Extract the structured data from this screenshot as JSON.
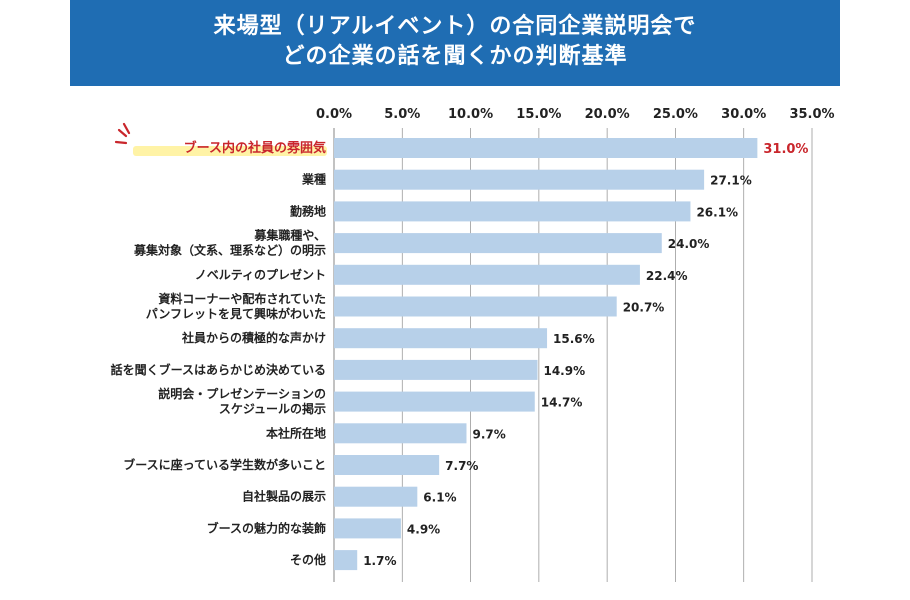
{
  "title": {
    "line1": "来場型（リアルイベント）の合同企業説明会で",
    "line2": "どの企業の話を聞くかの判断基準"
  },
  "colors": {
    "banner": "#1f6db3",
    "bar": "#b7d0e9",
    "highlight_text": "#c9262c",
    "highlight_marker": "#fff3a6"
  },
  "chart_data": {
    "type": "bar",
    "orientation": "horizontal",
    "xlim": [
      0,
      35
    ],
    "x_ticks": [
      "0.0%",
      "5.0%",
      "10.0%",
      "15.0%",
      "20.0%",
      "25.0%",
      "30.0%",
      "35.0%"
    ],
    "grid": true,
    "categories": [
      [
        "ブース内の社員の雰囲気"
      ],
      [
        "業種"
      ],
      [
        "勤務地"
      ],
      [
        "募集職種や、",
        "募集対象（文系、理系など）の明示"
      ],
      [
        "ノベルティのプレゼント"
      ],
      [
        "資料コーナーや配布されていた",
        "パンフレットを見て興味がわいた"
      ],
      [
        "社員からの積極的な声かけ"
      ],
      [
        "話を聞くブースはあらかじめ決めている"
      ],
      [
        "説明会・プレゼンテーションの",
        "スケジュールの掲示"
      ],
      [
        "本社所在地"
      ],
      [
        "ブースに座っている学生数が多いこと"
      ],
      [
        "自社製品の展示"
      ],
      [
        "ブースの魅力的な装飾"
      ],
      [
        "その他"
      ]
    ],
    "values": [
      31.0,
      27.1,
      26.1,
      24.0,
      22.4,
      20.7,
      15.6,
      14.9,
      14.7,
      9.7,
      7.7,
      6.1,
      4.9,
      1.7
    ],
    "value_labels": [
      "31.0%",
      "27.1%",
      "26.1%",
      "24.0%",
      "22.4%",
      "20.7%",
      "15.6%",
      "14.9%",
      "14.7%",
      "9.7%",
      "7.7%",
      "6.1%",
      "4.9%",
      "1.7%"
    ],
    "highlight_index": 0
  }
}
